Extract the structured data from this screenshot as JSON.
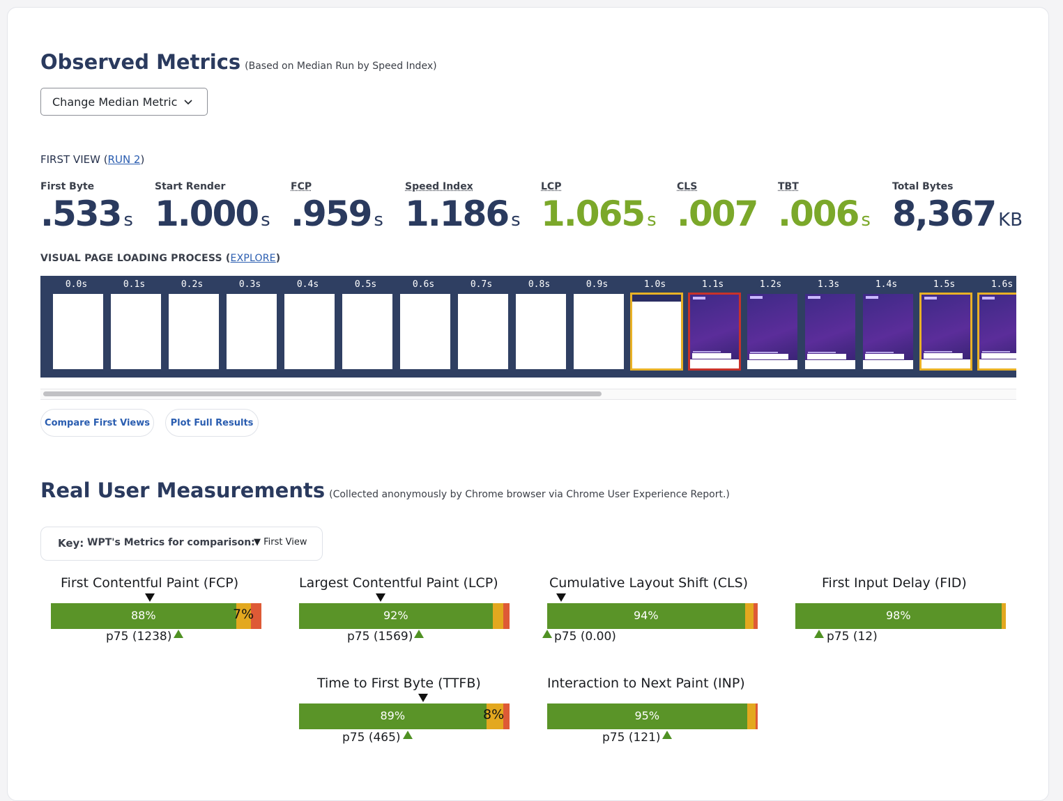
{
  "observed": {
    "title": "Observed Metrics",
    "subtitle": "(Based on Median Run by Speed Index)",
    "change_median_label": "Change Median Metric",
    "first_view_prefix": "FIRST VIEW (",
    "run_link": "RUN 2",
    "first_view_suffix": ")",
    "metrics": [
      {
        "label": "First Byte",
        "value": ".533",
        "unit": "s",
        "color": "#2a3a5e"
      },
      {
        "label": "Start Render",
        "value": "1.000",
        "unit": "s",
        "color": "#2a3a5e"
      },
      {
        "label": "FCP",
        "value": ".959",
        "unit": "s",
        "color": "#2a3a5e"
      },
      {
        "label": "Speed Index",
        "value": "1.186",
        "unit": "s",
        "color": "#2a3a5e"
      },
      {
        "label": "LCP",
        "value": "1.065",
        "unit": "s",
        "color": "#7ba82a"
      },
      {
        "label": "CLS",
        "value": ".007",
        "unit": "",
        "color": "#7ba82a"
      },
      {
        "label": "TBT",
        "value": ".006",
        "unit": "s",
        "color": "#7ba82a"
      },
      {
        "label": "Total Bytes",
        "value": "8,367",
        "unit": "KB",
        "color": "#2a3a5e"
      }
    ],
    "vplp_label": "VISUAL PAGE LOADING PROCESS (",
    "explore_link": "EXPLORE",
    "vplp_suffix": ")",
    "filmstrip": [
      {
        "time": "0.0s",
        "state": "blank"
      },
      {
        "time": "0.1s",
        "state": "blank"
      },
      {
        "time": "0.2s",
        "state": "blank"
      },
      {
        "time": "0.3s",
        "state": "blank"
      },
      {
        "time": "0.4s",
        "state": "blank"
      },
      {
        "time": "0.5s",
        "state": "blank"
      },
      {
        "time": "0.6s",
        "state": "blank"
      },
      {
        "time": "0.7s",
        "state": "blank"
      },
      {
        "time": "0.8s",
        "state": "blank"
      },
      {
        "time": "0.9s",
        "state": "blank"
      },
      {
        "time": "1.0s",
        "state": "partial-yellow"
      },
      {
        "time": "1.1s",
        "state": "loaded-red"
      },
      {
        "time": "1.2s",
        "state": "loaded"
      },
      {
        "time": "1.3s",
        "state": "loaded"
      },
      {
        "time": "1.4s",
        "state": "loaded"
      },
      {
        "time": "1.5s",
        "state": "loaded-yellow"
      },
      {
        "time": "1.6s",
        "state": "loaded-yellow"
      }
    ],
    "compare_label": "Compare First Views",
    "plot_label": "Plot Full Results"
  },
  "rum": {
    "title": "Real User Measurements",
    "subtitle": "(Collected anonymously by Chrome browser via Chrome User Experience Report.)",
    "key_label": "Key:",
    "key_desc": "WPT's Metrics for comparison:",
    "key_first_view": "▼ First View",
    "metrics": [
      {
        "title": "First Contentful Paint (FCP)",
        "good": 88,
        "ni": 7,
        "poor": 5,
        "good_label": "88%",
        "ni_label": "7%",
        "p75": "p75 (1238)"
      },
      {
        "title": "Largest Contentful Paint (LCP)",
        "good": 92,
        "ni": 5,
        "poor": 3,
        "good_label": "92%",
        "ni_label": "",
        "p75": "p75 (1569)"
      },
      {
        "title": "Cumulative Layout Shift (CLS)",
        "good": 94,
        "ni": 4,
        "poor": 2,
        "good_label": "94%",
        "ni_label": "",
        "p75": "p75 (0.00)"
      },
      {
        "title": "First Input Delay (FID)",
        "good": 98,
        "ni": 2,
        "poor": 0,
        "good_label": "98%",
        "ni_label": "",
        "p75": "p75 (12)"
      },
      {
        "title": "Time to First Byte (TTFB)",
        "good": 89,
        "ni": 8,
        "poor": 3,
        "good_label": "89%",
        "ni_label": "8%",
        "p75": "p75 (465)"
      },
      {
        "title": "Interaction to Next Paint (INP)",
        "good": 95,
        "ni": 4,
        "poor": 1,
        "good_label": "95%",
        "ni_label": "",
        "p75": "p75 (121)"
      }
    ]
  }
}
